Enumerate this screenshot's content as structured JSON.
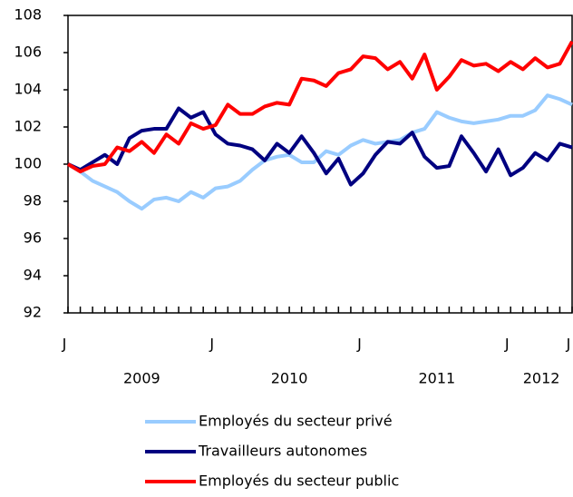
{
  "chart_data": {
    "type": "line",
    "categories": [
      "J",
      null,
      null,
      null,
      null,
      null,
      null,
      null,
      null,
      null,
      null,
      null,
      "J",
      null,
      null,
      null,
      null,
      null,
      null,
      null,
      null,
      null,
      null,
      null,
      "J",
      null,
      null,
      null,
      null,
      null,
      null,
      null,
      null,
      null,
      null,
      null,
      "J",
      null,
      null,
      null,
      null,
      "J"
    ],
    "year_labels": [
      {
        "label": "2009",
        "from": 0,
        "to": 12
      },
      {
        "label": "2010",
        "from": 12,
        "to": 24
      },
      {
        "label": "2011",
        "from": 24,
        "to": 36
      },
      {
        "label": "2012",
        "from": 36,
        "to": 41
      }
    ],
    "ylim": [
      92,
      108
    ],
    "yticks": [
      92,
      94,
      96,
      98,
      100,
      102,
      104,
      106,
      108
    ],
    "series": [
      {
        "name": "Employés du secteur privé",
        "color": "#99ccff",
        "values": [
          100,
          99.6,
          99.1,
          98.8,
          98.5,
          98.0,
          97.6,
          98.1,
          98.2,
          98.0,
          98.5,
          98.2,
          98.7,
          98.8,
          99.1,
          99.7,
          100.2,
          100.4,
          100.5,
          100.1,
          100.1,
          100.7,
          100.5,
          101.0,
          101.3,
          101.1,
          101.2,
          101.3,
          101.7,
          101.9,
          102.8,
          102.5,
          102.3,
          102.2,
          102.3,
          102.4,
          102.6,
          102.6,
          102.9,
          103.7,
          103.5,
          103.2
        ]
      },
      {
        "name": "Travailleurs autonomes",
        "color": "#000080",
        "values": [
          100,
          99.7,
          100.1,
          100.5,
          100.0,
          101.4,
          101.8,
          101.9,
          101.9,
          103.0,
          102.5,
          102.8,
          101.6,
          101.1,
          101.0,
          100.8,
          100.2,
          101.1,
          100.6,
          101.5,
          100.6,
          99.5,
          100.3,
          98.9,
          99.5,
          100.5,
          101.2,
          101.1,
          101.7,
          100.4,
          99.8,
          99.9,
          101.5,
          100.6,
          99.6,
          100.8,
          99.4,
          99.8,
          100.6,
          100.2,
          101.1,
          100.9
        ]
      },
      {
        "name": "Employés du secteur public",
        "color": "#ff0000",
        "values": [
          100,
          99.6,
          99.9,
          100.0,
          100.9,
          100.7,
          101.2,
          100.6,
          101.6,
          101.1,
          102.2,
          101.9,
          102.1,
          103.2,
          102.7,
          102.7,
          103.1,
          103.3,
          103.2,
          104.6,
          104.5,
          104.2,
          104.9,
          105.1,
          105.8,
          105.7,
          105.1,
          105.5,
          104.6,
          105.9,
          104.0,
          104.7,
          105.6,
          105.3,
          105.4,
          105.0,
          105.5,
          105.1,
          105.7,
          105.2,
          105.4,
          106.6
        ]
      }
    ]
  }
}
